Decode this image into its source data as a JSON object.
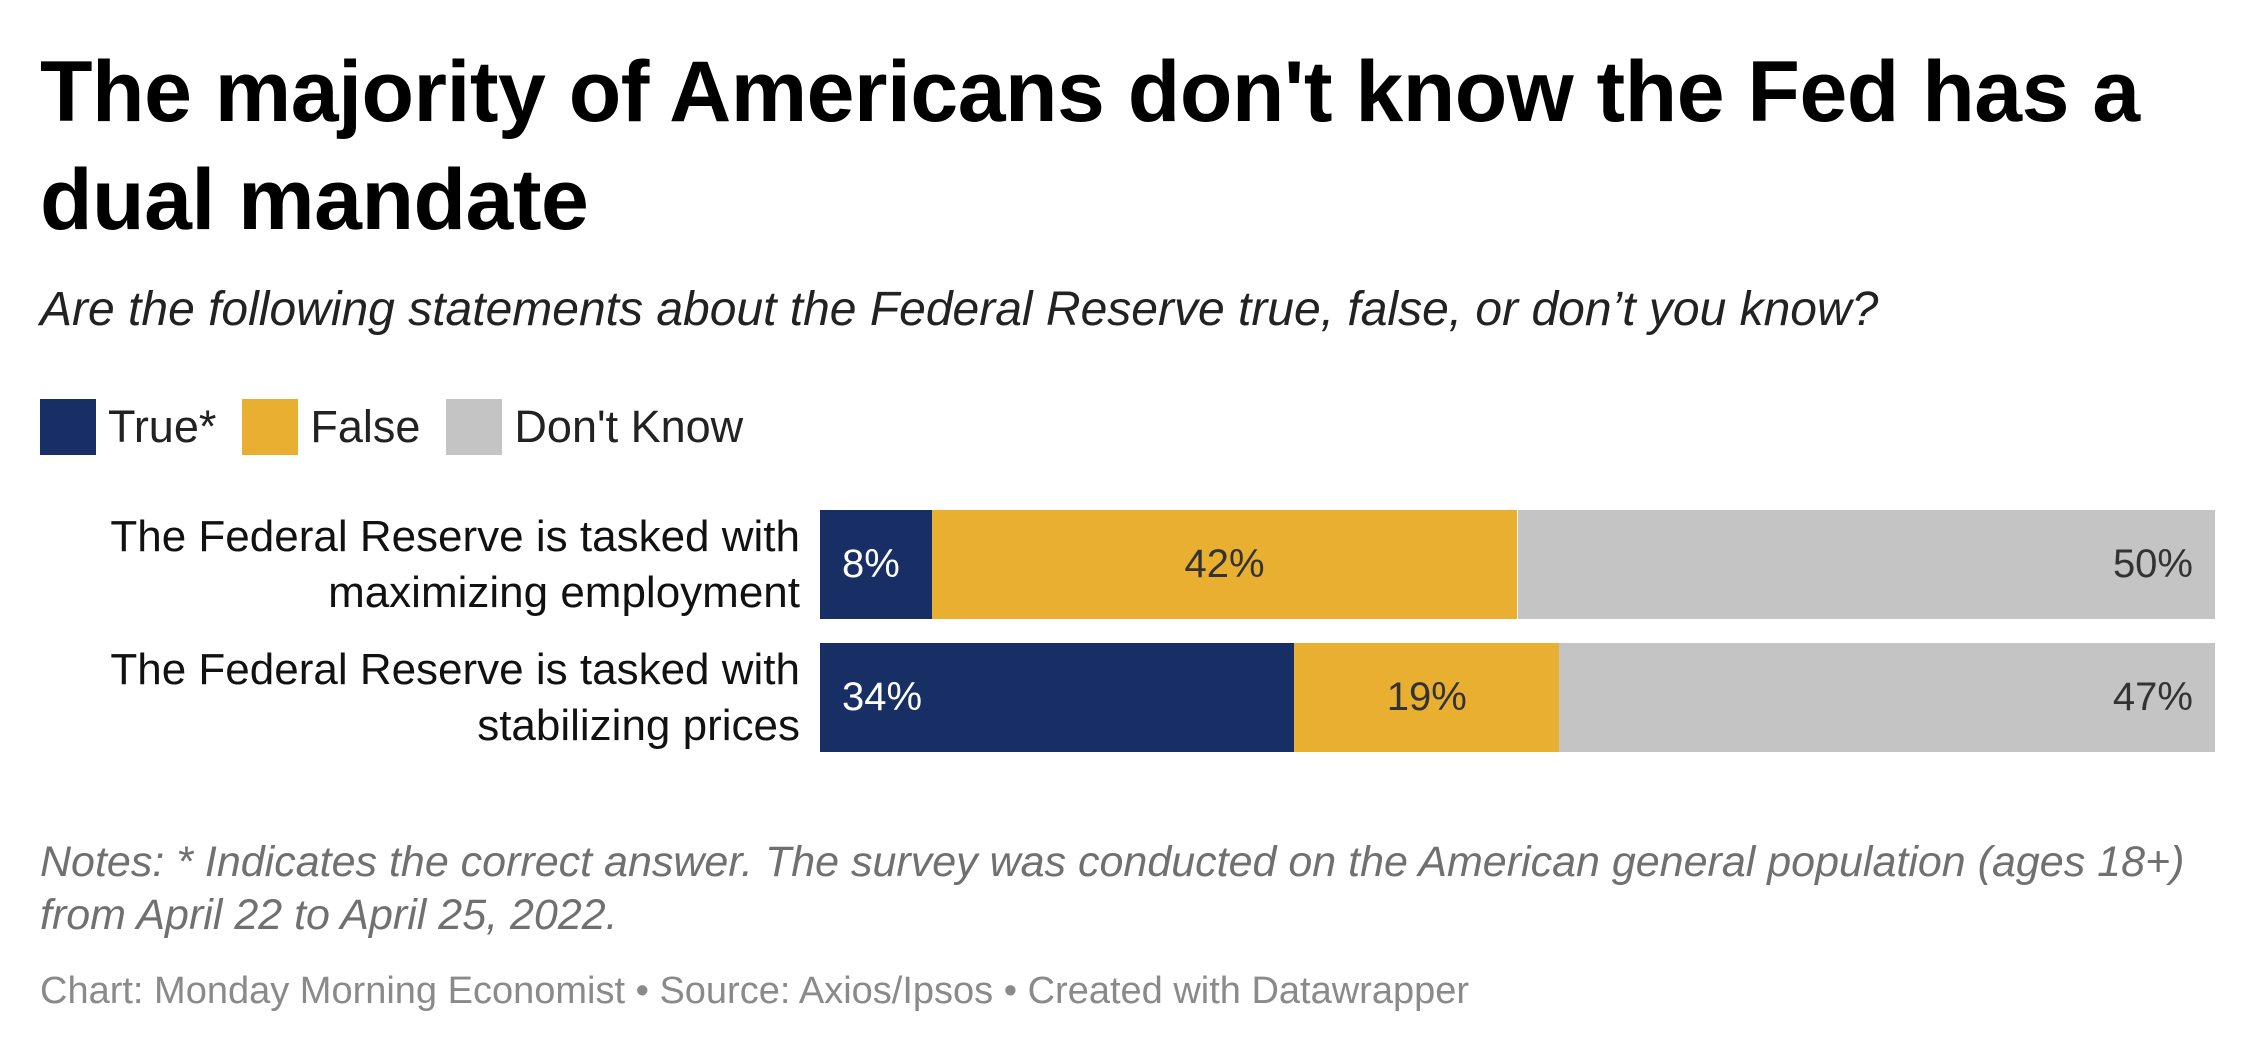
{
  "title": "The majority of Americans don't know the Fed has a dual mandate",
  "subtitle": "Are the following statements about the Federal Reserve true, false, or don’t you know?",
  "notes": "Notes: * Indicates the correct answer. The survey was conducted on the American general population (ages 18+) from April 22 to April 25, 2022.",
  "footer": "Chart: Monday Morning Economist • Source: Axios/Ipsos • Created with Datawrapper",
  "chart_data": {
    "type": "bar",
    "orientation": "horizontal",
    "stacked": true,
    "unit": "%",
    "xlim": [
      0,
      100
    ],
    "legend_placement": "top-left",
    "categories": [
      [
        "The Federal Reserve is tasked with",
        "maximizing employment"
      ],
      [
        "The Federal Reserve is tasked with",
        "stabilizing prices"
      ]
    ],
    "series": [
      {
        "name": "True*",
        "color": "#172f64",
        "label_color": "#ffffff",
        "values": [
          8,
          34
        ]
      },
      {
        "name": "False",
        "color": "#e9af31",
        "label_color": "#333333",
        "values": [
          42,
          19
        ]
      },
      {
        "name": "Don't Know",
        "color": "#c4c4c4",
        "label_color": "#333333",
        "values": [
          50,
          47
        ]
      }
    ]
  }
}
